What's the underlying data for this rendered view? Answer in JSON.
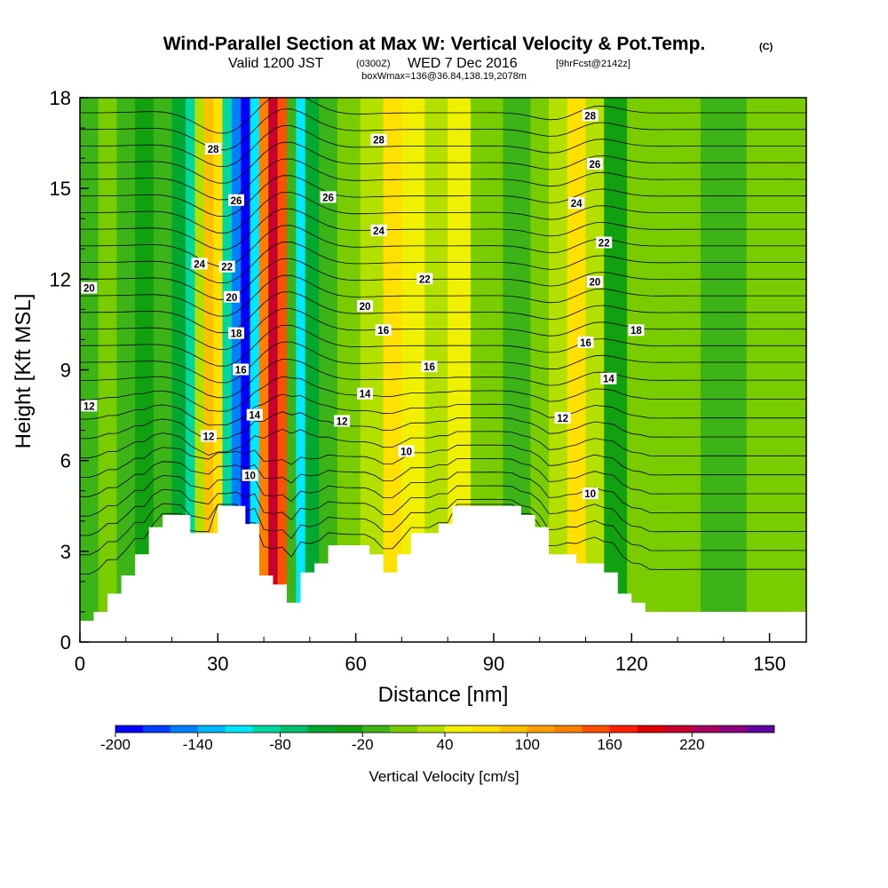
{
  "header": {
    "title": "Wind-Parallel Section at Max W: Vertical Velocity & Pot.Temp.",
    "copyright": "(C)",
    "valid_prefix": "Valid 1200 JST",
    "valid_utc": "(0300Z)",
    "valid_date": "WED 7 Dec 2016",
    "forecast": "[9hrFcst@2142z]",
    "boxinfo": "boxWmax=136@36.84,138.19,2078m"
  },
  "chart_data": {
    "type": "heatmap",
    "xlabel": "Distance [nm]",
    "ylabel": "Height [Kft MSL]",
    "xlim": [
      0,
      158
    ],
    "ylim": [
      0,
      18
    ],
    "xticks": [
      0,
      30,
      60,
      90,
      120,
      150
    ],
    "yticks": [
      0,
      3,
      6,
      9,
      12,
      15,
      18
    ],
    "colorbar": {
      "label": "Vertical Velocity [cm/s]",
      "tick_labels": [
        "-200",
        "-140",
        "-80",
        "-20",
        "40",
        "100",
        "160",
        "220"
      ],
      "levels": [
        -200,
        -180,
        -160,
        -140,
        -120,
        -100,
        -80,
        -60,
        -40,
        -20,
        0,
        20,
        40,
        60,
        80,
        100,
        120,
        140,
        160,
        180,
        200,
        220,
        240,
        260
      ],
      "colors": [
        "#0000ff",
        "#0040ff",
        "#0080ff",
        "#00b8ff",
        "#00e8ff",
        "#00d8a0",
        "#00c070",
        "#00a830",
        "#10a010",
        "#3cb418",
        "#78cc00",
        "#b4e000",
        "#f0f000",
        "#ffe000",
        "#ffc000",
        "#ffa000",
        "#ff8000",
        "#ff5000",
        "#ff2000",
        "#e00000",
        "#c80030",
        "#a80060",
        "#8c0080",
        "#6000a0"
      ]
    },
    "vertical_velocity_columns": [
      {
        "x": 2,
        "w": -20
      },
      {
        "x": 6,
        "w": 0
      },
      {
        "x": 10,
        "w": -20
      },
      {
        "x": 14,
        "w": -40
      },
      {
        "x": 18,
        "w": -20
      },
      {
        "x": 22,
        "w": -60
      },
      {
        "x": 24,
        "w": -100
      },
      {
        "x": 26,
        "w": 20
      },
      {
        "x": 28,
        "w": 80
      },
      {
        "x": 30,
        "w": 60
      },
      {
        "x": 32,
        "w": -100
      },
      {
        "x": 34,
        "w": -160
      },
      {
        "x": 36,
        "w": -200
      },
      {
        "x": 38,
        "w": -120
      },
      {
        "x": 40,
        "w": 120
      },
      {
        "x": 42,
        "w": 200
      },
      {
        "x": 44,
        "w": 140
      },
      {
        "x": 46,
        "w": -20
      },
      {
        "x": 48,
        "w": -120
      },
      {
        "x": 50,
        "w": -60
      },
      {
        "x": 54,
        "w": -20
      },
      {
        "x": 58,
        "w": 0
      },
      {
        "x": 64,
        "w": 20
      },
      {
        "x": 68,
        "w": 60
      },
      {
        "x": 72,
        "w": 40
      },
      {
        "x": 78,
        "w": 20
      },
      {
        "x": 82,
        "w": 40
      },
      {
        "x": 88,
        "w": 0
      },
      {
        "x": 96,
        "w": -20
      },
      {
        "x": 100,
        "w": 0
      },
      {
        "x": 104,
        "w": 20
      },
      {
        "x": 108,
        "w": 60
      },
      {
        "x": 112,
        "w": 20
      },
      {
        "x": 116,
        "w": -40
      },
      {
        "x": 122,
        "w": 0
      },
      {
        "x": 130,
        "w": 0
      },
      {
        "x": 140,
        "w": -20
      },
      {
        "x": 150,
        "w": 0
      },
      {
        "x": 156,
        "w": 0
      }
    ],
    "terrain": [
      [
        0,
        0.7
      ],
      [
        3,
        0.7
      ],
      [
        3,
        1.0
      ],
      [
        6,
        1.0
      ],
      [
        6,
        1.6
      ],
      [
        9,
        1.6
      ],
      [
        9,
        2.2
      ],
      [
        12,
        2.2
      ],
      [
        12,
        2.9
      ],
      [
        15,
        2.9
      ],
      [
        15,
        3.8
      ],
      [
        18,
        3.8
      ],
      [
        18,
        4.2
      ],
      [
        24,
        4.2
      ],
      [
        24,
        3.6
      ],
      [
        30,
        3.6
      ],
      [
        30,
        4.5
      ],
      [
        36,
        4.5
      ],
      [
        36,
        3.9
      ],
      [
        39,
        3.9
      ],
      [
        39,
        2.2
      ],
      [
        42,
        2.2
      ],
      [
        42,
        1.9
      ],
      [
        45,
        1.9
      ],
      [
        45,
        1.3
      ],
      [
        48,
        1.3
      ],
      [
        48,
        2.3
      ],
      [
        51,
        2.3
      ],
      [
        51,
        2.6
      ],
      [
        54,
        2.6
      ],
      [
        54,
        3.2
      ],
      [
        63,
        3.2
      ],
      [
        63,
        2.9
      ],
      [
        66,
        2.9
      ],
      [
        66,
        2.3
      ],
      [
        69,
        2.3
      ],
      [
        69,
        2.9
      ],
      [
        72,
        2.9
      ],
      [
        72,
        3.6
      ],
      [
        78,
        3.6
      ],
      [
        78,
        3.9
      ],
      [
        81,
        3.9
      ],
      [
        81,
        4.5
      ],
      [
        96,
        4.5
      ],
      [
        96,
        4.2
      ],
      [
        99,
        4.2
      ],
      [
        99,
        3.8
      ],
      [
        102,
        3.8
      ],
      [
        102,
        2.9
      ],
      [
        108,
        2.9
      ],
      [
        108,
        2.6
      ],
      [
        114,
        2.6
      ],
      [
        114,
        2.3
      ],
      [
        117,
        2.3
      ],
      [
        117,
        1.6
      ],
      [
        120,
        1.6
      ],
      [
        120,
        1.3
      ],
      [
        123,
        1.3
      ],
      [
        123,
        1.0
      ],
      [
        158,
        1.0
      ]
    ],
    "isentropes": {
      "quantity": "Pot.Temp.",
      "levels": [
        10,
        12,
        14,
        16,
        18,
        20,
        22,
        24,
        26,
        28
      ],
      "labels": [
        {
          "text": "20",
          "x": 2,
          "y": 11.7
        },
        {
          "text": "12",
          "x": 2,
          "y": 7.8
        },
        {
          "text": "28",
          "x": 29,
          "y": 16.3
        },
        {
          "text": "26",
          "x": 34,
          "y": 14.6
        },
        {
          "text": "24",
          "x": 26,
          "y": 12.5
        },
        {
          "text": "22",
          "x": 32,
          "y": 12.4
        },
        {
          "text": "20",
          "x": 33,
          "y": 11.4
        },
        {
          "text": "18",
          "x": 34,
          "y": 10.2
        },
        {
          "text": "16",
          "x": 35,
          "y": 9.0
        },
        {
          "text": "14",
          "x": 38,
          "y": 7.5
        },
        {
          "text": "12",
          "x": 28,
          "y": 6.8
        },
        {
          "text": "10",
          "x": 37,
          "y": 5.5
        },
        {
          "text": "26",
          "x": 54,
          "y": 14.7
        },
        {
          "text": "24",
          "x": 65,
          "y": 13.6
        },
        {
          "text": "22",
          "x": 75,
          "y": 12.0
        },
        {
          "text": "20",
          "x": 62,
          "y": 11.1
        },
        {
          "text": "16",
          "x": 66,
          "y": 10.3
        },
        {
          "text": "14",
          "x": 62,
          "y": 8.2
        },
        {
          "text": "12",
          "x": 57,
          "y": 7.3
        },
        {
          "text": "16",
          "x": 76,
          "y": 9.1
        },
        {
          "text": "10",
          "x": 71,
          "y": 6.3
        },
        {
          "text": "28",
          "x": 65,
          "y": 16.6
        },
        {
          "text": "28",
          "x": 111,
          "y": 17.4
        },
        {
          "text": "26",
          "x": 112,
          "y": 15.8
        },
        {
          "text": "24",
          "x": 108,
          "y": 14.5
        },
        {
          "text": "22",
          "x": 114,
          "y": 13.2
        },
        {
          "text": "20",
          "x": 112,
          "y": 11.9
        },
        {
          "text": "16",
          "x": 110,
          "y": 9.9
        },
        {
          "text": "18",
          "x": 121,
          "y": 10.3
        },
        {
          "text": "14",
          "x": 115,
          "y": 8.7
        },
        {
          "text": "12",
          "x": 105,
          "y": 7.4
        },
        {
          "text": "10",
          "x": 111,
          "y": 4.9
        }
      ]
    }
  }
}
